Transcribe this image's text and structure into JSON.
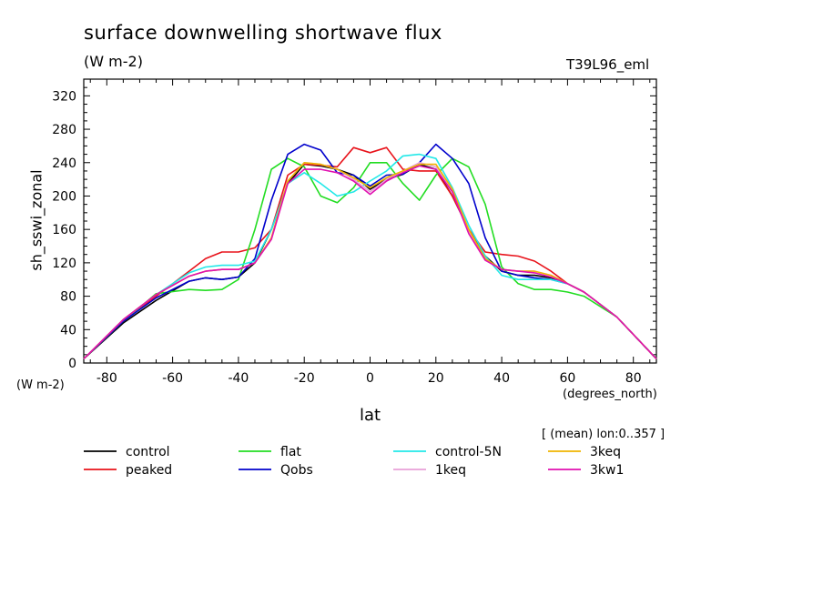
{
  "chart_data": {
    "type": "line",
    "title": "surface downwelling shortwave flux",
    "units": "(W m-2)",
    "experiment": "T39L96_eml",
    "ylabel": "sh_sswi_zonal",
    "yunits": "(W m-2)",
    "xlabel": "lat",
    "xunits": "(degrees_north)",
    "subtitle": "[ (mean) lon:0..357 ]",
    "xlim": [
      -87,
      87
    ],
    "ylim": [
      0,
      340
    ],
    "xticks": [
      -80,
      -60,
      -40,
      -20,
      0,
      20,
      40,
      60,
      80
    ],
    "yticks": [
      0,
      40,
      80,
      120,
      160,
      200,
      240,
      280,
      320
    ],
    "x": [
      -87,
      -75,
      -65,
      -55,
      -50,
      -45,
      -40,
      -35,
      -30,
      -25,
      -20,
      -15,
      -10,
      -5,
      0,
      5,
      10,
      15,
      20,
      25,
      30,
      35,
      40,
      45,
      50,
      55,
      60,
      65,
      75,
      87
    ],
    "series": [
      {
        "name": "control",
        "color": "#000000",
        "values": [
          5,
          48,
          75,
          98,
          102,
          100,
          103,
          120,
          160,
          215,
          238,
          236,
          232,
          225,
          208,
          220,
          226,
          238,
          232,
          200,
          160,
          128,
          110,
          105,
          105,
          102,
          95,
          85,
          55,
          5
        ]
      },
      {
        "name": "peaked",
        "color": "#e8121a",
        "values": [
          5,
          50,
          80,
          110,
          125,
          133,
          133,
          138,
          160,
          225,
          238,
          237,
          235,
          258,
          252,
          258,
          232,
          230,
          230,
          200,
          160,
          133,
          130,
          128,
          122,
          110,
          95,
          85,
          55,
          5
        ]
      },
      {
        "name": "flat",
        "color": "#22dd22",
        "values": [
          5,
          50,
          83,
          88,
          87,
          88,
          100,
          160,
          232,
          245,
          235,
          200,
          192,
          210,
          240,
          240,
          215,
          195,
          225,
          245,
          235,
          190,
          115,
          95,
          88,
          88,
          85,
          80,
          55,
          5
        ]
      },
      {
        "name": "Qobs",
        "color": "#0000cc",
        "values": [
          5,
          50,
          78,
          98,
          102,
          100,
          103,
          125,
          195,
          250,
          262,
          255,
          228,
          225,
          212,
          225,
          226,
          240,
          262,
          245,
          215,
          150,
          110,
          105,
          102,
          100,
          95,
          85,
          55,
          5
        ]
      },
      {
        "name": "control-5N",
        "color": "#22e8e8",
        "values": [
          5,
          52,
          82,
          108,
          115,
          117,
          117,
          122,
          160,
          215,
          228,
          215,
          200,
          205,
          218,
          230,
          248,
          250,
          245,
          210,
          165,
          128,
          105,
          100,
          100,
          100,
          95,
          85,
          55,
          5
        ]
      },
      {
        "name": "1keq",
        "color": "#e8a0d8",
        "values": [
          5,
          52,
          82,
          104,
          110,
          112,
          112,
          120,
          150,
          218,
          240,
          238,
          232,
          220,
          205,
          220,
          230,
          240,
          235,
          205,
          158,
          125,
          112,
          110,
          110,
          105,
          95,
          85,
          55,
          5
        ]
      },
      {
        "name": "3keq",
        "color": "#f0b400",
        "values": [
          5,
          52,
          82,
          104,
          110,
          112,
          112,
          120,
          150,
          218,
          240,
          238,
          232,
          222,
          210,
          222,
          230,
          238,
          238,
          208,
          160,
          125,
          112,
          110,
          110,
          105,
          95,
          85,
          55,
          5
        ]
      },
      {
        "name": "3kw1",
        "color": "#e010b0",
        "values": [
          5,
          52,
          82,
          104,
          110,
          112,
          112,
          120,
          148,
          215,
          232,
          232,
          228,
          218,
          202,
          218,
          228,
          236,
          232,
          205,
          155,
          123,
          112,
          110,
          108,
          103,
          95,
          85,
          55,
          5
        ]
      }
    ]
  }
}
